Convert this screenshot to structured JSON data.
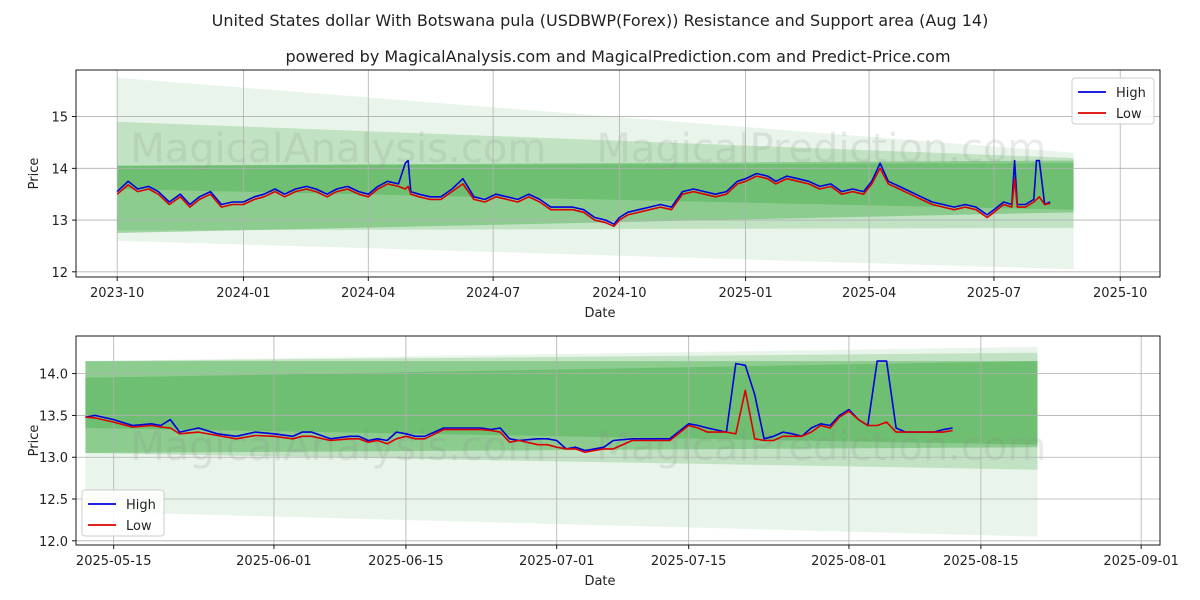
{
  "title": "United States dollar With Botswana pula (USDBWP(Forex)) Resistance and Support area (Aug 14)",
  "subtitle": "powered by MagicalAnalysis.com and MagicalPrediction.com and Predict-Price.com",
  "watermark_left": "MagicalAnalysis.com",
  "watermark_right": "MagicalPrediction.com",
  "colors": {
    "high": "#0000dd",
    "low": "#dd0000",
    "band_dark": "#4caf50",
    "band_light": "#8fd18f"
  },
  "chart_data": [
    {
      "type": "line",
      "title": "",
      "xlabel": "Date",
      "ylabel": "Price",
      "xlim": [
        -30,
        760
      ],
      "ylim": [
        11.9,
        15.9
      ],
      "x_origin": "2023-10-01 = 0 (days)",
      "xticks": [
        {
          "v": 0,
          "label": "2023-10"
        },
        {
          "v": 92,
          "label": "2024-01"
        },
        {
          "v": 183,
          "label": "2024-04"
        },
        {
          "v": 274,
          "label": "2024-07"
        },
        {
          "v": 366,
          "label": "2024-10"
        },
        {
          "v": 458,
          "label": "2025-01"
        },
        {
          "v": 548,
          "label": "2025-04"
        },
        {
          "v": 639,
          "label": "2025-07"
        },
        {
          "v": 731,
          "label": "2025-10"
        }
      ],
      "yticks": [
        12,
        13,
        14,
        15
      ],
      "legend": {
        "position": "top-right",
        "entries": [
          "High",
          "Low"
        ]
      },
      "bands": [
        {
          "x": [
            0,
            697
          ],
          "upper": [
            15.75,
            14.3
          ],
          "lower": [
            12.6,
            12.05
          ],
          "opacity": 0.12
        },
        {
          "x": [
            0,
            697
          ],
          "upper": [
            14.9,
            14.2
          ],
          "lower": [
            12.8,
            12.85
          ],
          "opacity": 0.25
        },
        {
          "x": [
            0,
            697
          ],
          "upper": [
            14.05,
            14.15
          ],
          "lower": [
            12.75,
            13.15
          ],
          "opacity": 0.45
        },
        {
          "x": [
            0,
            697
          ],
          "upper": [
            14.05,
            14.1
          ],
          "lower": [
            13.6,
            13.2
          ],
          "opacity": 0.45
        }
      ],
      "series": [
        {
          "name": "High",
          "x": [
            0,
            8,
            15,
            23,
            30,
            38,
            46,
            53,
            60,
            68,
            76,
            84,
            92,
            100,
            107,
            115,
            122,
            130,
            138,
            145,
            153,
            160,
            168,
            176,
            183,
            190,
            197,
            205,
            210,
            212,
            214,
            220,
            228,
            236,
            244,
            252,
            260,
            268,
            276,
            284,
            292,
            300,
            308,
            316,
            324,
            332,
            340,
            348,
            356,
            362,
            366,
            372,
            380,
            388,
            396,
            404,
            412,
            420,
            428,
            436,
            444,
            452,
            458,
            466,
            474,
            480,
            488,
            496,
            504,
            512,
            520,
            528,
            536,
            544,
            550,
            556,
            562,
            570,
            578,
            586,
            594,
            602,
            610,
            618,
            626,
            634,
            639,
            646,
            652,
            654,
            656,
            662,
            668,
            670,
            672,
            676,
            680
          ],
          "values": [
            13.55,
            13.75,
            13.6,
            13.65,
            13.55,
            13.35,
            13.5,
            13.3,
            13.45,
            13.55,
            13.3,
            13.35,
            13.35,
            13.45,
            13.5,
            13.6,
            13.5,
            13.6,
            13.65,
            13.6,
            13.5,
            13.6,
            13.65,
            13.55,
            13.5,
            13.65,
            13.75,
            13.7,
            14.1,
            14.15,
            13.55,
            13.5,
            13.45,
            13.45,
            13.6,
            13.8,
            13.45,
            13.4,
            13.5,
            13.45,
            13.4,
            13.5,
            13.4,
            13.25,
            13.25,
            13.25,
            13.2,
            13.05,
            13.0,
            12.92,
            13.05,
            13.15,
            13.2,
            13.25,
            13.3,
            13.25,
            13.55,
            13.6,
            13.55,
            13.5,
            13.55,
            13.75,
            13.8,
            13.9,
            13.85,
            13.75,
            13.85,
            13.8,
            13.75,
            13.65,
            13.7,
            13.55,
            13.6,
            13.55,
            13.75,
            14.1,
            13.75,
            13.65,
            13.55,
            13.45,
            13.35,
            13.3,
            13.25,
            13.3,
            13.25,
            13.1,
            13.2,
            13.35,
            13.3,
            14.15,
            13.3,
            13.3,
            13.4,
            14.15,
            14.15,
            13.3,
            13.35
          ]
        },
        {
          "name": "Low",
          "x": [
            0,
            8,
            15,
            23,
            30,
            38,
            46,
            53,
            60,
            68,
            76,
            84,
            92,
            100,
            107,
            115,
            122,
            130,
            138,
            145,
            153,
            160,
            168,
            176,
            183,
            190,
            197,
            205,
            210,
            212,
            214,
            220,
            228,
            236,
            244,
            252,
            260,
            268,
            276,
            284,
            292,
            300,
            308,
            316,
            324,
            332,
            340,
            348,
            356,
            362,
            366,
            372,
            380,
            388,
            396,
            404,
            412,
            420,
            428,
            436,
            444,
            452,
            458,
            466,
            474,
            480,
            488,
            496,
            504,
            512,
            520,
            528,
            536,
            544,
            550,
            556,
            562,
            570,
            578,
            586,
            594,
            602,
            610,
            618,
            626,
            634,
            639,
            646,
            652,
            654,
            656,
            662,
            668,
            670,
            672,
            676,
            680
          ],
          "values": [
            13.5,
            13.68,
            13.55,
            13.6,
            13.5,
            13.3,
            13.45,
            13.25,
            13.4,
            13.5,
            13.25,
            13.3,
            13.3,
            13.4,
            13.45,
            13.55,
            13.45,
            13.55,
            13.6,
            13.55,
            13.45,
            13.55,
            13.6,
            13.5,
            13.45,
            13.6,
            13.7,
            13.65,
            13.6,
            13.65,
            13.5,
            13.45,
            13.4,
            13.4,
            13.55,
            13.7,
            13.4,
            13.35,
            13.45,
            13.4,
            13.35,
            13.45,
            13.35,
            13.2,
            13.2,
            13.2,
            13.15,
            13.0,
            12.95,
            12.88,
            13.0,
            13.1,
            13.15,
            13.2,
            13.25,
            13.2,
            13.5,
            13.55,
            13.5,
            13.45,
            13.5,
            13.7,
            13.75,
            13.85,
            13.8,
            13.7,
            13.8,
            13.75,
            13.7,
            13.6,
            13.65,
            13.5,
            13.55,
            13.5,
            13.7,
            14.0,
            13.7,
            13.6,
            13.5,
            13.4,
            13.3,
            13.25,
            13.2,
            13.25,
            13.2,
            13.05,
            13.15,
            13.3,
            13.25,
            13.8,
            13.25,
            13.25,
            13.35,
            13.4,
            13.45,
            13.3,
            13.32
          ]
        }
      ]
    },
    {
      "type": "line",
      "title": "",
      "xlabel": "Date",
      "ylabel": "Price",
      "xlim": [
        -4,
        111
      ],
      "ylim": [
        11.95,
        14.45
      ],
      "x_origin": "2025-05-15 = 0 (days)",
      "xticks": [
        {
          "v": 0,
          "label": "2025-05-15"
        },
        {
          "v": 17,
          "label": "2025-06-01"
        },
        {
          "v": 31,
          "label": "2025-06-15"
        },
        {
          "v": 47,
          "label": "2025-07-01"
        },
        {
          "v": 61,
          "label": "2025-07-15"
        },
        {
          "v": 78,
          "label": "2025-08-01"
        },
        {
          "v": 92,
          "label": "2025-08-15"
        },
        {
          "v": 109,
          "label": "2025-09-01"
        }
      ],
      "yticks": [
        12.0,
        12.5,
        13.0,
        13.5,
        14.0
      ],
      "legend": {
        "position": "bottom-left",
        "entries": [
          "High",
          "Low"
        ]
      },
      "bands": [
        {
          "x": [
            -3,
            98
          ],
          "upper": [
            14.15,
            14.32
          ],
          "lower": [
            12.35,
            12.05
          ],
          "opacity": 0.12
        },
        {
          "x": [
            -3,
            98
          ],
          "upper": [
            14.15,
            14.25
          ],
          "lower": [
            13.05,
            12.85
          ],
          "opacity": 0.25
        },
        {
          "x": [
            -3,
            98
          ],
          "upper": [
            13.95,
            14.15
          ],
          "lower": [
            13.05,
            13.12
          ],
          "opacity": 0.45
        },
        {
          "x": [
            -3,
            98
          ],
          "upper": [
            14.15,
            14.15
          ],
          "lower": [
            13.35,
            13.15
          ],
          "opacity": 0.45
        }
      ],
      "series": [
        {
          "name": "High",
          "x": [
            -3,
            -2,
            0,
            2,
            4,
            5,
            6,
            7,
            9,
            11,
            13,
            15,
            17,
            19,
            20,
            21,
            23,
            25,
            26,
            27,
            28,
            29,
            30,
            31,
            32,
            33,
            35,
            37,
            38,
            39,
            40,
            41,
            42,
            43,
            45,
            46,
            47,
            48,
            49,
            50,
            51,
            52,
            53,
            55,
            57,
            59,
            61,
            62,
            63,
            65,
            66,
            67,
            68,
            69,
            70,
            71,
            72,
            73,
            74,
            75,
            76,
            77,
            78,
            79,
            80,
            81,
            82,
            83,
            84,
            85,
            86,
            87,
            88,
            89
          ],
          "values": [
            13.48,
            13.5,
            13.45,
            13.38,
            13.4,
            13.38,
            13.45,
            13.3,
            13.35,
            13.28,
            13.25,
            13.3,
            13.28,
            13.25,
            13.3,
            13.3,
            13.22,
            13.25,
            13.25,
            13.2,
            13.22,
            13.2,
            13.3,
            13.28,
            13.25,
            13.25,
            13.35,
            13.35,
            13.35,
            13.35,
            13.33,
            13.35,
            13.22,
            13.2,
            13.22,
            13.22,
            13.2,
            13.1,
            13.12,
            13.08,
            13.1,
            13.12,
            13.2,
            13.22,
            13.22,
            13.22,
            13.4,
            13.38,
            13.35,
            13.3,
            14.12,
            14.1,
            13.75,
            13.22,
            13.25,
            13.3,
            13.28,
            13.25,
            13.35,
            13.4,
            13.38,
            13.5,
            13.57,
            13.45,
            13.38,
            14.15,
            14.15,
            13.35,
            13.3,
            13.3,
            13.3,
            13.3,
            13.33,
            13.35
          ]
        },
        {
          "name": "Low",
          "x": [
            -3,
            -2,
            0,
            2,
            4,
            5,
            6,
            7,
            9,
            11,
            13,
            15,
            17,
            19,
            20,
            21,
            23,
            25,
            26,
            27,
            28,
            29,
            30,
            31,
            32,
            33,
            35,
            37,
            38,
            39,
            40,
            41,
            42,
            43,
            45,
            46,
            47,
            48,
            49,
            50,
            51,
            52,
            53,
            55,
            57,
            59,
            61,
            62,
            63,
            65,
            66,
            67,
            68,
            69,
            70,
            71,
            72,
            73,
            74,
            75,
            76,
            77,
            78,
            79,
            80,
            81,
            82,
            83,
            84,
            85,
            86,
            87,
            88,
            89
          ],
          "values": [
            13.48,
            13.47,
            13.42,
            13.36,
            13.38,
            13.36,
            13.35,
            13.28,
            13.3,
            13.26,
            13.22,
            13.26,
            13.25,
            13.22,
            13.25,
            13.25,
            13.2,
            13.22,
            13.22,
            13.18,
            13.2,
            13.16,
            13.22,
            13.25,
            13.22,
            13.22,
            13.33,
            13.33,
            13.33,
            13.33,
            13.32,
            13.3,
            13.18,
            13.2,
            13.15,
            13.15,
            13.12,
            13.1,
            13.1,
            13.06,
            13.08,
            13.1,
            13.1,
            13.2,
            13.2,
            13.2,
            13.38,
            13.35,
            13.3,
            13.3,
            13.28,
            13.8,
            13.22,
            13.2,
            13.2,
            13.25,
            13.25,
            13.25,
            13.3,
            13.38,
            13.35,
            13.48,
            13.55,
            13.45,
            13.38,
            13.38,
            13.42,
            13.3,
            13.3,
            13.3,
            13.3,
            13.3,
            13.3,
            13.32
          ]
        }
      ]
    }
  ]
}
